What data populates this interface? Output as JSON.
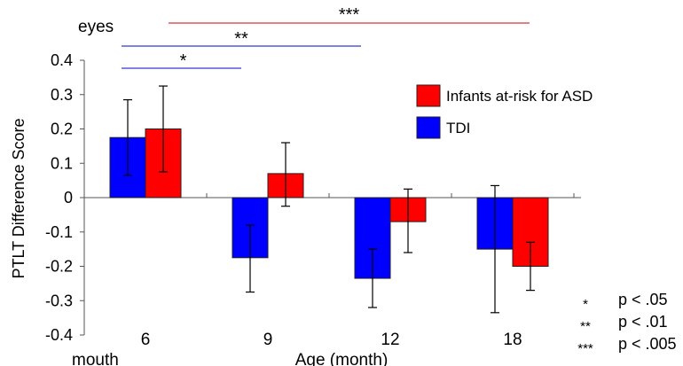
{
  "chart_data": {
    "type": "bar",
    "ylabel": "PTLT Difference Score",
    "xlabel": "Age (month)",
    "top_label": "eyes",
    "bottom_label": "mouth",
    "ylim": [
      -0.4,
      0.4
    ],
    "yticks": [
      "0.4",
      "0.3",
      "0.2",
      "0.1",
      "0",
      "-0.1",
      "-0.2",
      "-0.3",
      "-0.4"
    ],
    "categories": [
      "6",
      "9",
      "12",
      "18"
    ],
    "series": [
      {
        "name": "TDI",
        "color": "#0000ff",
        "values": [
          0.175,
          -0.175,
          -0.235,
          -0.15
        ],
        "err_low": [
          0.065,
          -0.275,
          -0.32,
          -0.335
        ],
        "err_high": [
          0.285,
          -0.08,
          -0.15,
          0.035
        ]
      },
      {
        "name": "Infants at-risk for ASD",
        "color": "#ff0000",
        "values": [
          0.2,
          0.07,
          -0.07,
          -0.2
        ],
        "err_low": [
          0.075,
          -0.025,
          -0.16,
          -0.27
        ],
        "err_high": [
          0.325,
          0.16,
          0.025,
          -0.13
        ]
      }
    ],
    "legend_order": [
      1,
      0
    ],
    "legend_position": "top-right",
    "significance": [
      {
        "label": "*",
        "from": "6",
        "to": "9",
        "color": "#0000cc"
      },
      {
        "label": "**",
        "from": "6",
        "to": "12",
        "color": "#0000cc"
      },
      {
        "label": "***",
        "from": "6",
        "to": "18",
        "color": "#cc0000"
      }
    ],
    "pvalue_key": [
      {
        "stars": "*",
        "text": "p < .05"
      },
      {
        "stars": "**",
        "text": "p < .01"
      },
      {
        "stars": "***",
        "text": "p < .005"
      }
    ]
  }
}
